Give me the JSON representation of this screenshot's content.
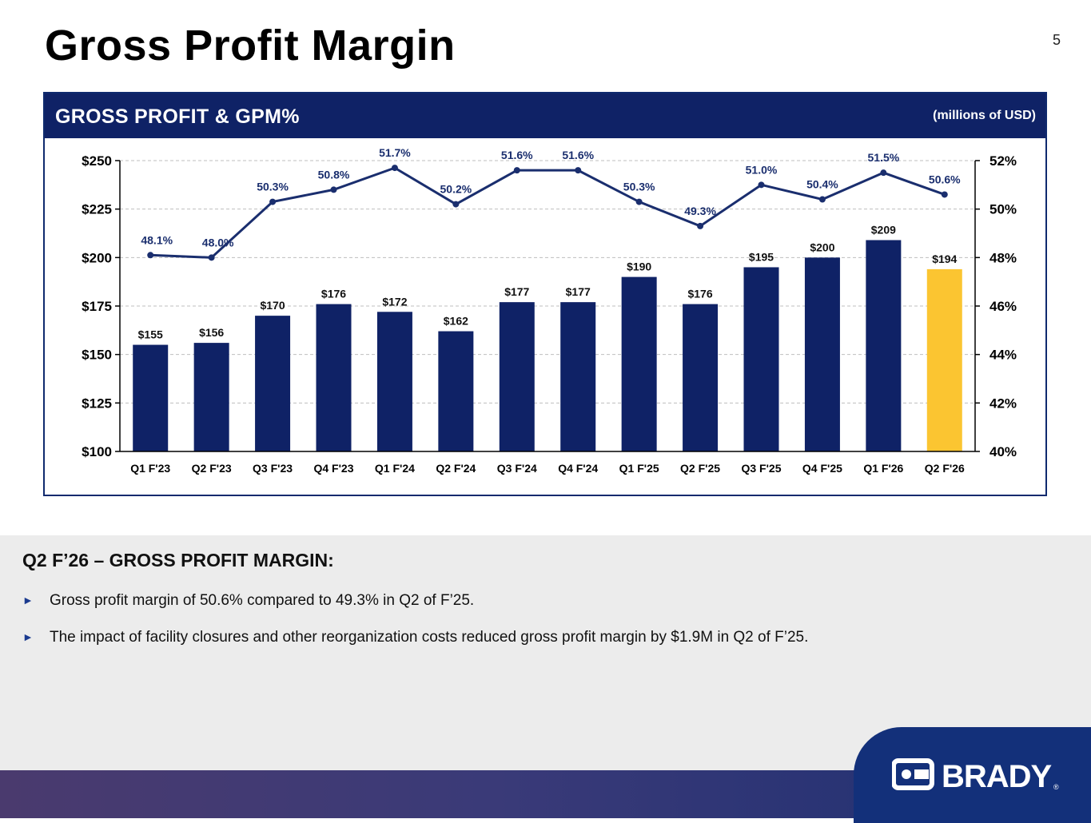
{
  "page": {
    "title": "Gross Profit Margin",
    "page_number": "5"
  },
  "panel": {
    "title": "GROSS PROFIT & GPM%",
    "unit_note": "(millions of USD)"
  },
  "colors": {
    "navy": "#0f2266",
    "bar": "#0f2266",
    "highlight": "#fbc531",
    "line": "#1a2e6e"
  },
  "chart_data": {
    "type": "bar",
    "title": "GROSS PROFIT & GPM%",
    "categories": [
      "Q1 F'23",
      "Q2 F'23",
      "Q3 F'23",
      "Q4 F'23",
      "Q1 F'24",
      "Q2 F'24",
      "Q3 F'24",
      "Q4 F'24",
      "Q1 F'25",
      "Q2 F'25",
      "Q3 F'25",
      "Q4 F'25",
      "Q1 F'26",
      "Q2 F'26"
    ],
    "series": [
      {
        "name": "Gross Profit",
        "type": "bar",
        "axis": "left",
        "values": [
          155,
          156,
          170,
          176,
          172,
          162,
          177,
          177,
          190,
          176,
          195,
          200,
          209,
          194
        ],
        "labels": [
          "$155",
          "$156",
          "$170",
          "$176",
          "$172",
          "$162",
          "$177",
          "$177",
          "$190",
          "$176",
          "$195",
          "$200",
          "$209",
          "$194"
        ]
      },
      {
        "name": "GPM%",
        "type": "line",
        "axis": "right",
        "values": [
          48.1,
          48.0,
          50.3,
          50.8,
          51.7,
          50.2,
          51.6,
          51.6,
          50.3,
          49.3,
          51.0,
          50.4,
          51.5,
          50.6
        ],
        "labels": [
          "48.1%",
          "48.0%",
          "50.3%",
          "50.8%",
          "51.7%",
          "50.2%",
          "51.6%",
          "51.6%",
          "50.3%",
          "49.3%",
          "51.0%",
          "50.4%",
          "51.5%",
          "50.6%"
        ]
      }
    ],
    "highlight_index": 13,
    "y_left": {
      "lim": [
        100,
        250
      ],
      "ticks": [
        100,
        125,
        150,
        175,
        200,
        225,
        250
      ],
      "tick_labels": [
        "$100",
        "$125",
        "$150",
        "$175",
        "$200",
        "$225",
        "$250"
      ]
    },
    "y_right": {
      "lim": [
        40,
        52
      ],
      "ticks": [
        40,
        42,
        44,
        46,
        48,
        50,
        52
      ],
      "tick_labels": [
        "40%",
        "42%",
        "44%",
        "46%",
        "48%",
        "50%",
        "52%"
      ]
    },
    "grid": true
  },
  "summary": {
    "heading": "Q2 F’26 – GROSS PROFIT MARGIN:",
    "bullet_marker": "►",
    "bullets": [
      "Gross profit margin of 50.6% compared to 49.3% in Q2 of F’25.",
      "The impact of facility closures and other reorganization costs reduced gross profit margin by $1.9M in Q2 of F’25."
    ]
  },
  "brand": {
    "logo_text": "BRADY",
    "registered": "®"
  }
}
